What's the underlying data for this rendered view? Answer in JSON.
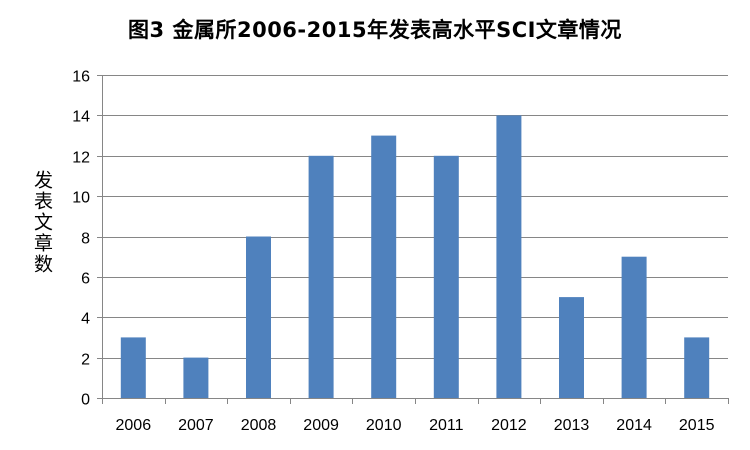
{
  "chart_data": {
    "type": "bar",
    "title": "图3 金属所2006-2015年发表高水平SCI文章情况",
    "xlabel": "",
    "ylabel": "发表文章数",
    "categories": [
      "2006",
      "2007",
      "2008",
      "2009",
      "2010",
      "2011",
      "2012",
      "2013",
      "2014",
      "2015"
    ],
    "values": [
      3,
      2,
      8,
      12,
      13,
      12,
      14,
      5,
      7,
      3
    ],
    "ylim": [
      0,
      16
    ],
    "yticks": [
      0,
      2,
      4,
      6,
      8,
      10,
      12,
      14,
      16
    ],
    "grid": true,
    "legend": "none",
    "bar_color": "#4f81bd",
    "grid_color": "#868686"
  }
}
